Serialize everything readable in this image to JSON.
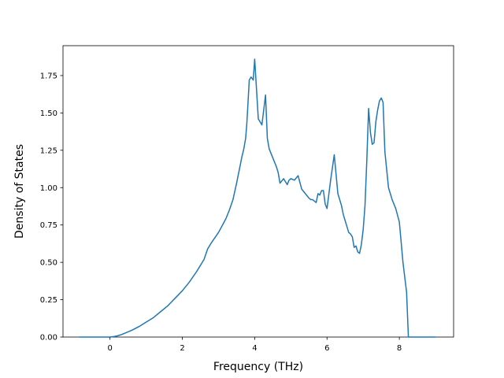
{
  "chart_data": {
    "type": "line",
    "title": "",
    "xlabel": "Frequency (THz)",
    "ylabel": "Density of States",
    "xlim": [
      -1.3,
      9.5
    ],
    "ylim": [
      0,
      1.95
    ],
    "x_ticks": [
      0,
      2,
      4,
      6,
      8
    ],
    "x_tick_labels": [
      "0",
      "2",
      "4",
      "6",
      "8"
    ],
    "y_ticks": [
      0,
      0.25,
      0.5,
      0.75,
      1.0,
      1.25,
      1.5,
      1.75
    ],
    "y_tick_labels": [
      "0.00",
      "0.25",
      "0.50",
      "0.75",
      "1.00",
      "1.25",
      "1.50",
      "1.75"
    ],
    "grid": false,
    "legend": "none",
    "series": [
      {
        "color": "#1f77b4",
        "x": [
          -0.85,
          0.0,
          0.1,
          0.2,
          0.3,
          0.4,
          0.6,
          0.8,
          1.0,
          1.2,
          1.4,
          1.6,
          1.8,
          2.0,
          2.2,
          2.4,
          2.6,
          2.7,
          2.8,
          3.0,
          3.2,
          3.3,
          3.4,
          3.5,
          3.6,
          3.65,
          3.7,
          3.75,
          3.78,
          3.8,
          3.85,
          3.9,
          3.93,
          3.96,
          4.0,
          4.1,
          4.2,
          4.3,
          4.35,
          4.4,
          4.5,
          4.6,
          4.65,
          4.7,
          4.8,
          4.9,
          4.95,
          5.0,
          5.1,
          5.2,
          5.3,
          5.4,
          5.5,
          5.55,
          5.6,
          5.65,
          5.7,
          5.75,
          5.8,
          5.85,
          5.9,
          5.95,
          6.0,
          6.1,
          6.2,
          6.3,
          6.4,
          6.45,
          6.5,
          6.55,
          6.6,
          6.65,
          6.7,
          6.75,
          6.8,
          6.85,
          6.9,
          6.95,
          7.0,
          7.05,
          7.1,
          7.15,
          7.2,
          7.25,
          7.3,
          7.35,
          7.4,
          7.45,
          7.5,
          7.55,
          7.6,
          7.7,
          7.8,
          7.9,
          8.0,
          8.1,
          8.2,
          8.25,
          8.3,
          9.0
        ],
        "y": [
          0.0,
          0.0,
          0.003,
          0.008,
          0.015,
          0.025,
          0.045,
          0.07,
          0.1,
          0.13,
          0.17,
          0.21,
          0.26,
          0.31,
          0.37,
          0.44,
          0.52,
          0.59,
          0.63,
          0.7,
          0.79,
          0.85,
          0.92,
          1.03,
          1.15,
          1.21,
          1.26,
          1.33,
          1.42,
          1.5,
          1.72,
          1.74,
          1.73,
          1.72,
          1.86,
          1.46,
          1.42,
          1.62,
          1.33,
          1.26,
          1.2,
          1.14,
          1.1,
          1.03,
          1.06,
          1.02,
          1.05,
          1.06,
          1.05,
          1.08,
          0.99,
          0.96,
          0.93,
          0.92,
          0.92,
          0.91,
          0.9,
          0.96,
          0.95,
          0.98,
          0.98,
          0.89,
          0.86,
          1.05,
          1.22,
          0.96,
          0.88,
          0.82,
          0.78,
          0.74,
          0.7,
          0.69,
          0.67,
          0.6,
          0.61,
          0.57,
          0.56,
          0.62,
          0.72,
          0.88,
          1.18,
          1.53,
          1.37,
          1.29,
          1.3,
          1.44,
          1.52,
          1.58,
          1.6,
          1.57,
          1.24,
          1.0,
          0.92,
          0.86,
          0.77,
          0.5,
          0.3,
          0.0,
          0.0,
          0.0
        ]
      }
    ]
  }
}
